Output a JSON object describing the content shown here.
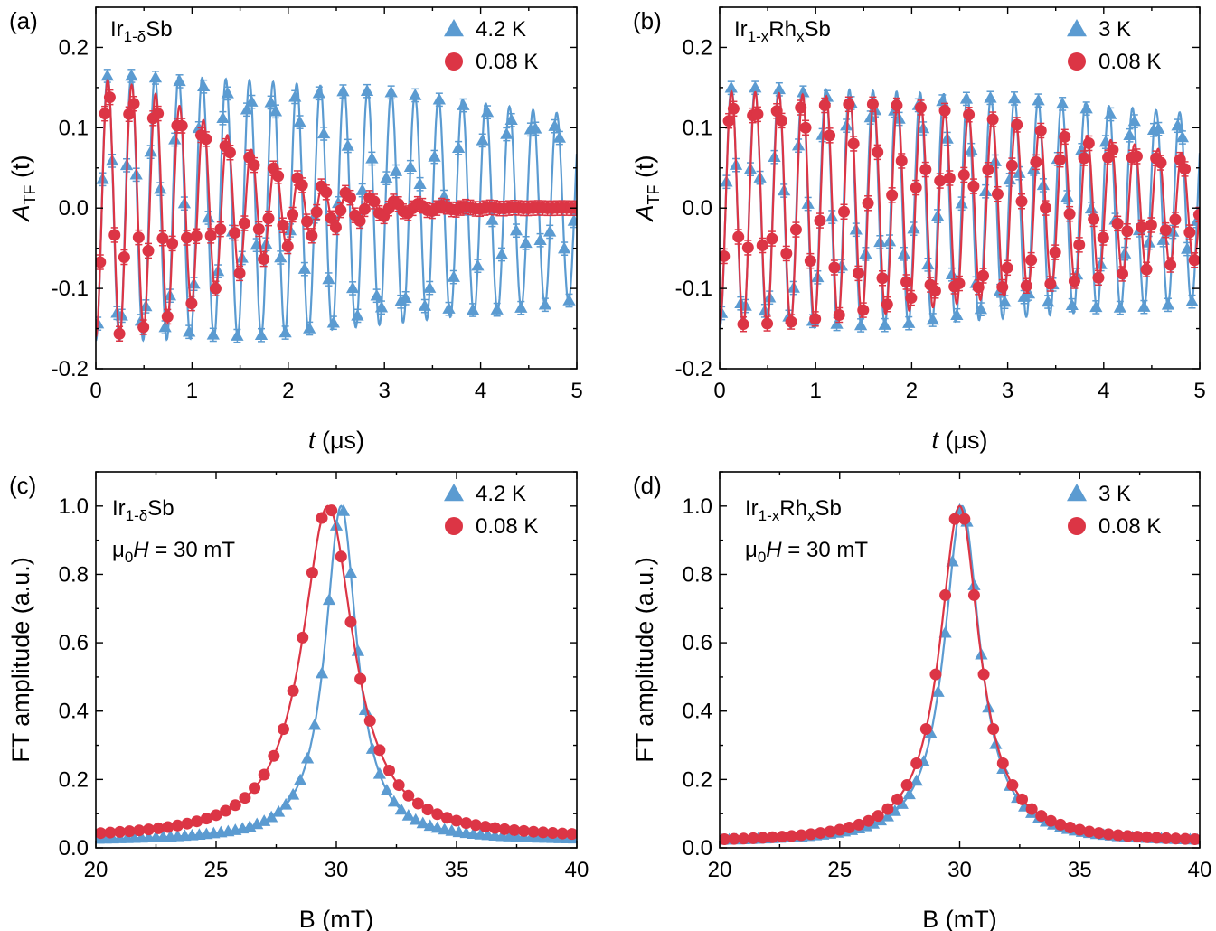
{
  "colors": {
    "blue": "#5b9bd1",
    "red": "#dc3545"
  },
  "chart_data": [
    {
      "id": "a",
      "type": "scatter",
      "panel_label": "(a)",
      "sample": {
        "base": "Ir",
        "sub": "1-δ",
        "tail": "Sb"
      },
      "xlabel": {
        "italic": "t",
        "rest": " (μs)"
      },
      "ylabel": {
        "main": "A",
        "sub": "TF",
        "tail": " (t)"
      },
      "xlim": [
        0,
        5
      ],
      "ylim": [
        -0.2,
        0.25
      ],
      "xticks": [
        0,
        1,
        2,
        3,
        4,
        5
      ],
      "xtick_labels": [
        "0",
        "1",
        "2",
        "3",
        "4",
        "5"
      ],
      "yticks": [
        -0.2,
        -0.1,
        0.0,
        0.1,
        0.2
      ],
      "ytick_labels": [
        "-0.2",
        "-0.1",
        "0.0",
        "0.1",
        "0.2"
      ],
      "legend_position": "top-right",
      "series": [
        {
          "name": "4.2 K",
          "marker": "triangle",
          "color": "#5b9bd1",
          "fit": "oscillation",
          "t_step": 0.05,
          "amplitude": 0.165,
          "lambda": 0.12,
          "frequency": 4.07,
          "phase": 3.14159,
          "error": 0.008
        },
        {
          "name": "0.08 K",
          "marker": "circle",
          "color": "#dc3545",
          "fit": "oscillation",
          "t_step": 0.05,
          "amplitude": 0.16,
          "lambda": 0.55,
          "frequency": 4.02,
          "phase": 3.14159,
          "error": 0.009
        }
      ]
    },
    {
      "id": "b",
      "type": "scatter",
      "panel_label": "(b)",
      "sample": {
        "base": "Ir",
        "sub": "1-x",
        "tail": "Rh",
        "sub2": "x",
        "tail2": "Sb"
      },
      "xlabel": {
        "italic": "t",
        "rest": " (μs)"
      },
      "ylabel": {
        "main": "A",
        "sub": "TF",
        "tail": " (t)"
      },
      "xlim": [
        0,
        5
      ],
      "ylim": [
        -0.2,
        0.25
      ],
      "xticks": [
        0,
        1,
        2,
        3,
        4,
        5
      ],
      "xtick_labels": [
        "0",
        "1",
        "2",
        "3",
        "4",
        "5"
      ],
      "yticks": [
        -0.2,
        -0.1,
        0.0,
        0.1,
        0.2
      ],
      "ytick_labels": [
        "-0.2",
        "-0.1",
        "0.0",
        "0.1",
        "0.2"
      ],
      "legend_position": "top-right",
      "series": [
        {
          "name": "3 K",
          "marker": "triangle",
          "color": "#5b9bd1",
          "fit": "oscillation",
          "t_step": 0.05,
          "amplitude": 0.15,
          "lambda": 0.1,
          "frequency": 4.07,
          "phase": 3.14159,
          "error": 0.008
        },
        {
          "name": "0.08 K",
          "marker": "circle",
          "color": "#dc3545",
          "fit": "oscillation",
          "t_step": 0.05,
          "amplitude": 0.145,
          "lambda": 0.18,
          "frequency": 4.05,
          "phase": 3.14159,
          "error": 0.009
        }
      ]
    },
    {
      "id": "c",
      "type": "scatter",
      "panel_label": "(c)",
      "sample": {
        "base": "Ir",
        "sub": "1-δ",
        "tail": "Sb"
      },
      "field_note": {
        "mu": "μ",
        "sub": "0",
        "italic": "H",
        "rest": " = 30 mT"
      },
      "xlabel": {
        "italic": "",
        "rest": "B (mT)"
      },
      "ylabel": {
        "main": "FT amplitude (a.u.)",
        "sub": "",
        "tail": ""
      },
      "xlim": [
        20,
        40
      ],
      "ylim": [
        0,
        1.1
      ],
      "xticks": [
        20,
        25,
        30,
        35,
        40
      ],
      "xtick_labels": [
        "20",
        "25",
        "30",
        "35",
        "40"
      ],
      "yticks": [
        0.0,
        0.2,
        0.4,
        0.6,
        0.8,
        1.0
      ],
      "ytick_labels": [
        "0.0",
        "0.2",
        "0.4",
        "0.6",
        "0.8",
        "1.0"
      ],
      "legend_position": "top-right",
      "series": [
        {
          "name": "4.2 K",
          "marker": "triangle",
          "color": "#5b9bd1",
          "fit": "lorentzian",
          "x_start": 20.1,
          "x_end": 39.9,
          "x_step": 0.3,
          "center": 30.2,
          "hwhm": 0.8,
          "baseline": 0.02
        },
        {
          "name": "0.08 K",
          "marker": "circle",
          "color": "#dc3545",
          "fit": "lorentzian",
          "x_start": 20.2,
          "x_end": 39.8,
          "x_step": 0.4,
          "center": 29.65,
          "hwhm": 1.3,
          "baseline": 0.025
        }
      ]
    },
    {
      "id": "d",
      "type": "scatter",
      "panel_label": "(d)",
      "sample": {
        "base": "Ir",
        "sub": "1-x",
        "tail": "Rh",
        "sub2": "x",
        "tail2": "Sb"
      },
      "field_note": {
        "mu": "μ",
        "sub": "0",
        "italic": "H",
        "rest": " = 30 mT"
      },
      "xlabel": {
        "italic": "",
        "rest": "B (mT)"
      },
      "ylabel": {
        "main": "FT amplitude (a.u.)",
        "sub": "",
        "tail": ""
      },
      "xlim": [
        20,
        40
      ],
      "ylim": [
        0,
        1.1
      ],
      "xticks": [
        20,
        25,
        30,
        35,
        40
      ],
      "xtick_labels": [
        "20",
        "25",
        "30",
        "35",
        "40"
      ],
      "yticks": [
        0.0,
        0.2,
        0.4,
        0.6,
        0.8,
        1.0
      ],
      "ytick_labels": [
        "0.0",
        "0.2",
        "0.4",
        "0.6",
        "0.8",
        "1.0"
      ],
      "legend_position": "top-right",
      "series": [
        {
          "name": "3 K",
          "marker": "triangle",
          "color": "#5b9bd1",
          "fit": "lorentzian",
          "x_start": 20.1,
          "x_end": 39.9,
          "x_step": 0.3,
          "center": 30.1,
          "hwhm": 0.9,
          "baseline": 0.015
        },
        {
          "name": "0.08 K",
          "marker": "circle",
          "color": "#dc3545",
          "fit": "lorentzian",
          "x_start": 20.2,
          "x_end": 39.8,
          "x_step": 0.4,
          "center": 30.0,
          "hwhm": 1.0,
          "baseline": 0.015
        }
      ]
    }
  ]
}
